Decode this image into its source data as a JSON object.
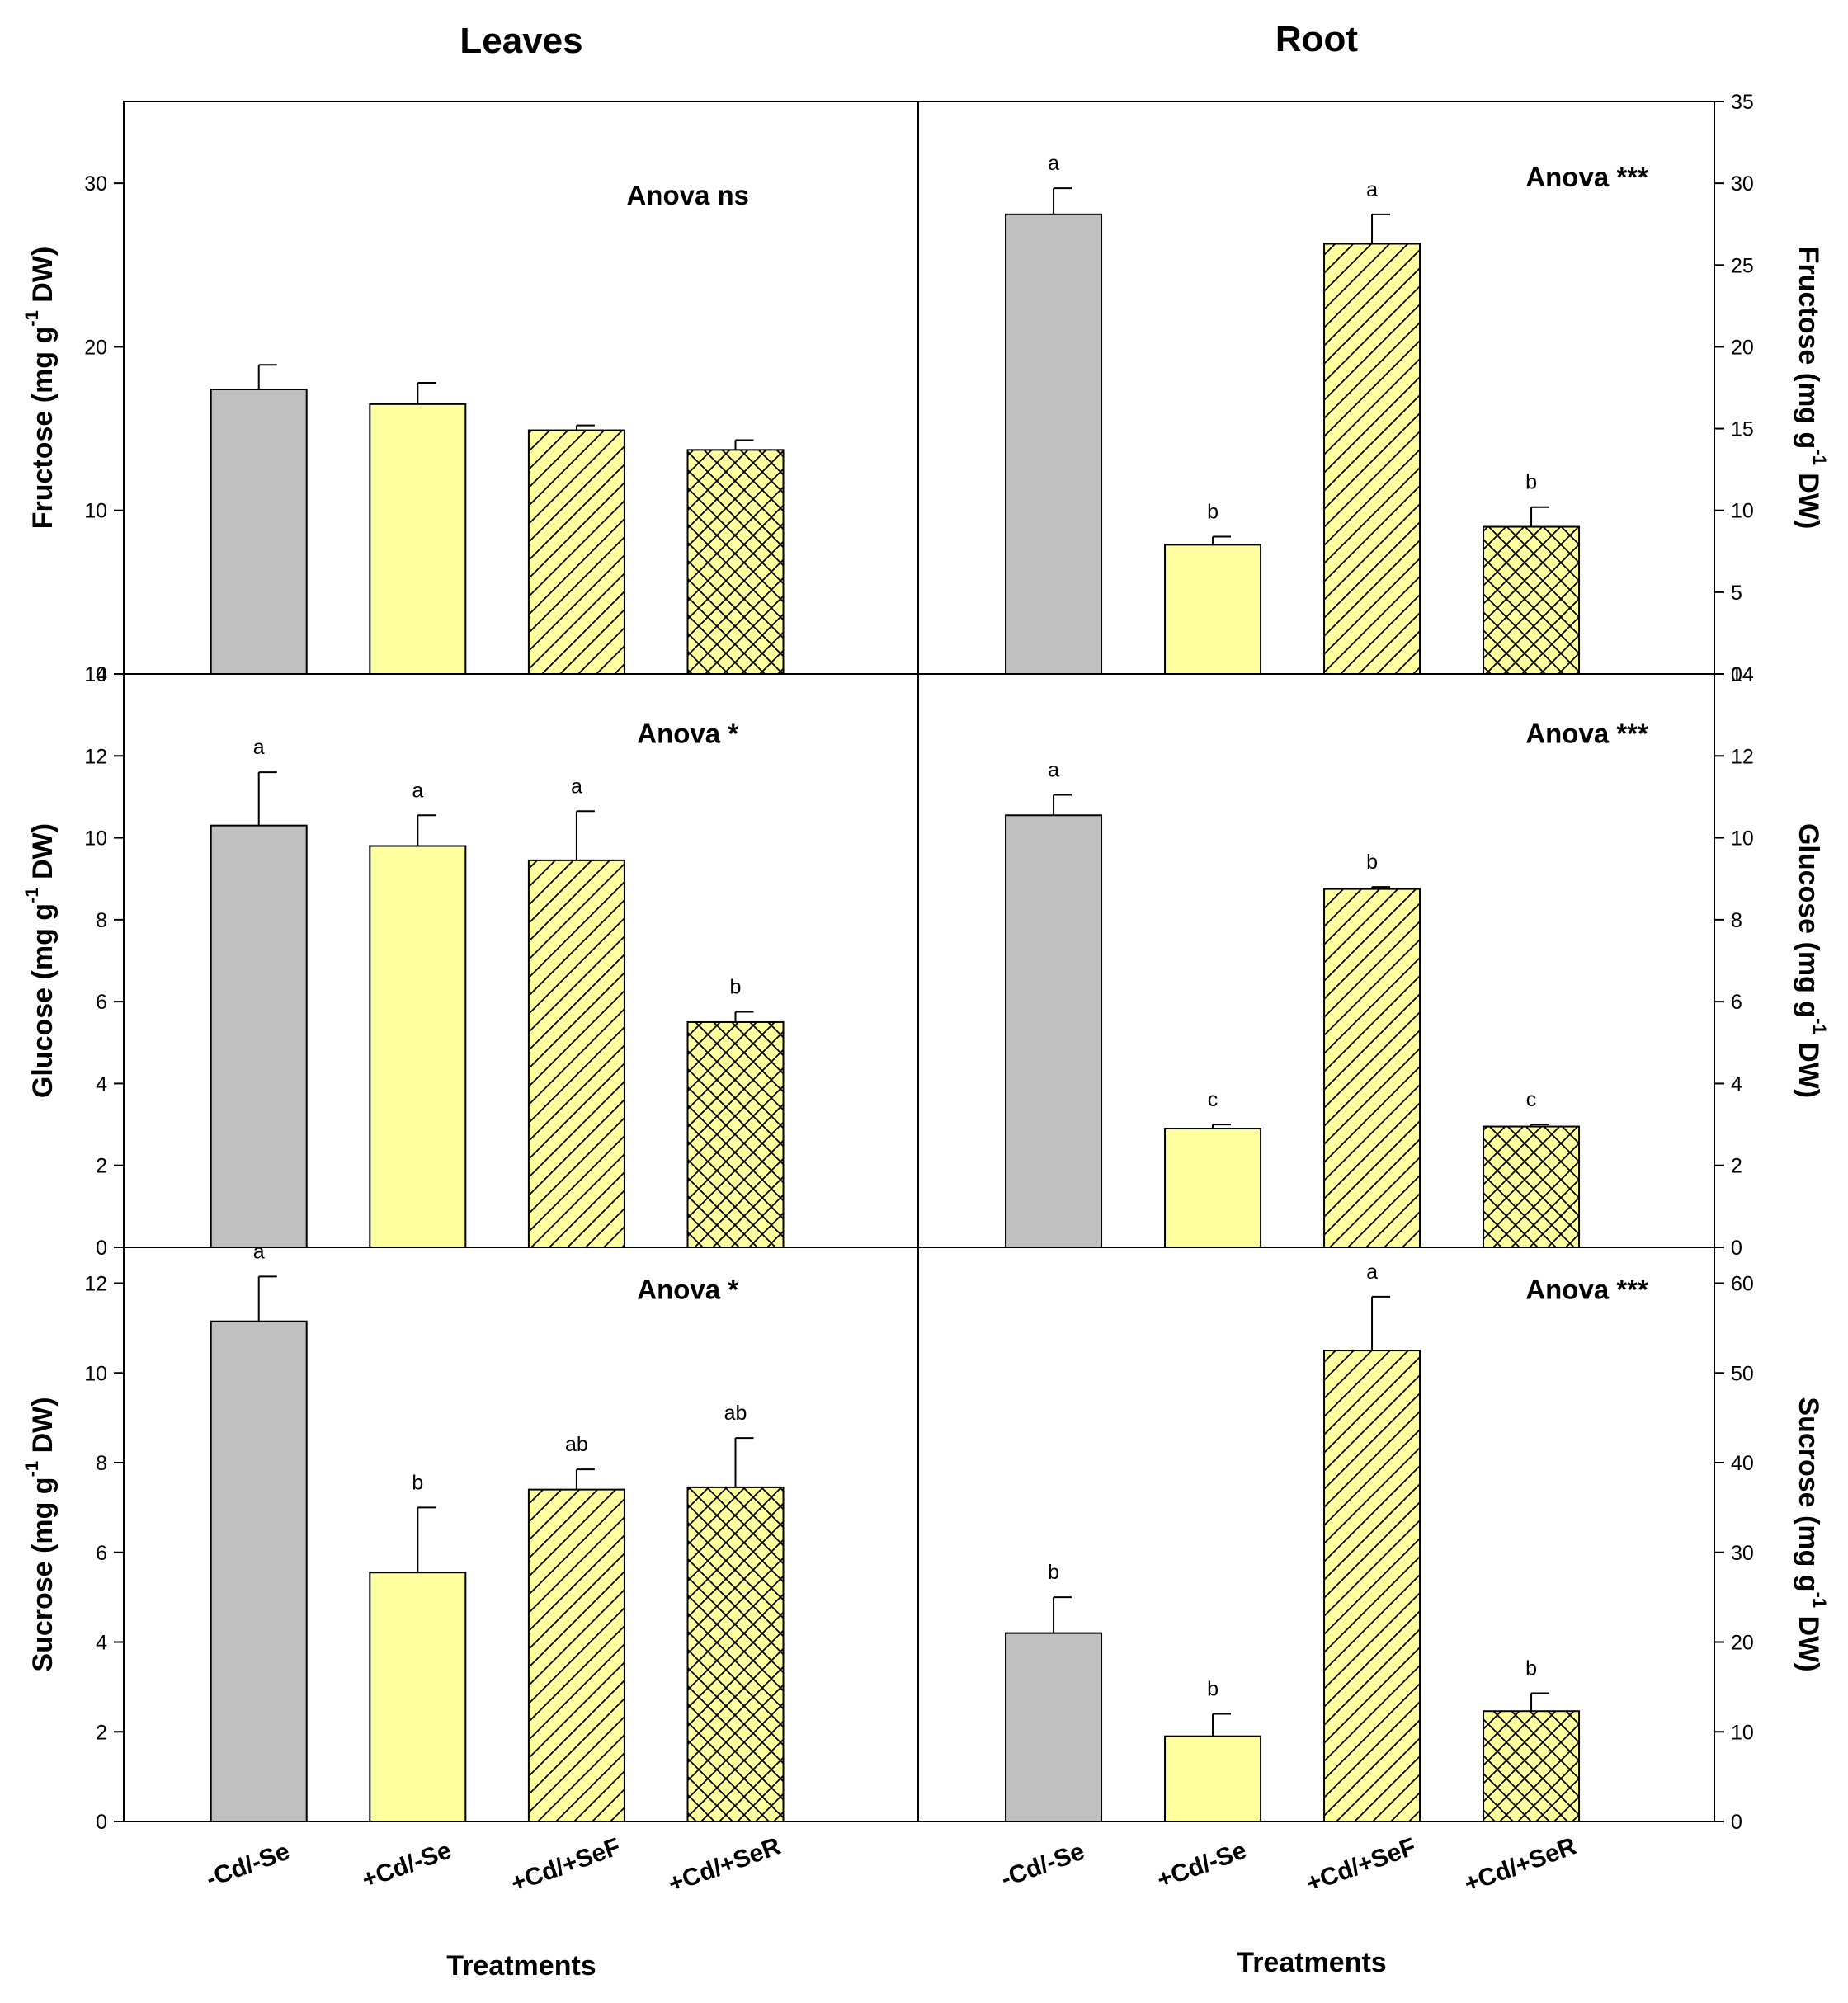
{
  "column_titles": {
    "left": "Leaves",
    "right": "Root"
  },
  "xlabels": {
    "left": "Treatments",
    "right": "Treatments"
  },
  "colors": {
    "control": "#c0c0c0",
    "cd": "#ffffa0",
    "stroke": "#000000"
  },
  "chart_data": [
    {
      "type": "bar",
      "organ": "Leaves",
      "ylabel": "Fructose (mg g-1 DW)",
      "ylabel_main": "Fructose (mg g",
      "ylabel_sup": "-1",
      "ylabel_tail": " DW)",
      "ylim": [
        0,
        35
      ],
      "yticks": [
        0,
        10,
        20,
        30
      ],
      "categories": [
        "-Cd/-Se",
        "+Cd/-Se",
        "+Cd/+SeF",
        "+Cd/+SeR"
      ],
      "patterns": [
        "solid",
        "solid",
        "diagonal",
        "crosshatch"
      ],
      "values": [
        17.4,
        16.5,
        14.9,
        13.7
      ],
      "errors": [
        1.5,
        1.3,
        0.3,
        0.6
      ],
      "letters": [
        "",
        "",
        "",
        ""
      ],
      "annotation": "Anova ns"
    },
    {
      "type": "bar",
      "organ": "Root",
      "ylabel": "Fructose (mg g-1 DW)",
      "ylabel_main": "Fructose (mg g",
      "ylabel_sup": "-1",
      "ylabel_tail": " DW)",
      "ylim": [
        0,
        35
      ],
      "yticks": [
        0,
        5,
        10,
        15,
        20,
        25,
        30,
        35
      ],
      "categories": [
        "-Cd/-Se",
        "+Cd/-Se",
        "+Cd/+SeF",
        "+Cd/+SeR"
      ],
      "patterns": [
        "solid",
        "solid",
        "diagonal",
        "crosshatch"
      ],
      "values": [
        28.1,
        7.9,
        26.3,
        9.0
      ],
      "errors": [
        1.6,
        0.5,
        1.8,
        1.2
      ],
      "letters": [
        "a",
        "b",
        "a",
        "b"
      ],
      "annotation": "Anova ***"
    },
    {
      "type": "bar",
      "organ": "Leaves",
      "ylabel": "Glucose (mg g-1 DW)",
      "ylabel_main": "Glucose (mg g",
      "ylabel_sup": "-1",
      "ylabel_tail": " DW)",
      "ylim": [
        0,
        14
      ],
      "yticks": [
        0,
        2,
        4,
        6,
        8,
        10,
        12,
        14
      ],
      "categories": [
        "-Cd/-Se",
        "+Cd/-Se",
        "+Cd/+SeF",
        "+Cd/+SeR"
      ],
      "patterns": [
        "solid",
        "solid",
        "diagonal",
        "crosshatch"
      ],
      "values": [
        10.3,
        9.8,
        9.45,
        5.5
      ],
      "errors": [
        1.3,
        0.75,
        1.2,
        0.25
      ],
      "letters": [
        "a",
        "a",
        "a",
        "b"
      ],
      "annotation": "Anova *"
    },
    {
      "type": "bar",
      "organ": "Root",
      "ylabel": "Glucose (mg g-1 DW)",
      "ylabel_main": "Glucose (mg g",
      "ylabel_sup": "-1",
      "ylabel_tail": " DW)",
      "ylim": [
        0,
        14
      ],
      "yticks": [
        0,
        2,
        4,
        6,
        8,
        10,
        12,
        14
      ],
      "categories": [
        "-Cd/-Se",
        "+Cd/-Se",
        "+Cd/+SeF",
        "+Cd/+SeR"
      ],
      "patterns": [
        "solid",
        "solid",
        "diagonal",
        "crosshatch"
      ],
      "values": [
        10.55,
        2.9,
        8.75,
        2.95
      ],
      "errors": [
        0.5,
        0.1,
        0.05,
        0.05
      ],
      "letters": [
        "a",
        "c",
        "b",
        "c"
      ],
      "annotation": "Anova ***"
    },
    {
      "type": "bar",
      "organ": "Leaves",
      "ylabel": "Sucrose (mg g-1 DW)",
      "ylabel_main": "Sucrose (mg g",
      "ylabel_sup": "-1",
      "ylabel_tail": " DW)",
      "ylim": [
        0,
        12.8
      ],
      "yticks": [
        0,
        2,
        4,
        6,
        8,
        10,
        12
      ],
      "categories": [
        "-Cd/-Se",
        "+Cd/-Se",
        "+Cd/+SeF",
        "+Cd/+SeR"
      ],
      "patterns": [
        "solid",
        "solid",
        "diagonal",
        "crosshatch"
      ],
      "values": [
        11.15,
        5.55,
        7.4,
        7.45
      ],
      "errors": [
        1.0,
        1.45,
        0.45,
        1.1
      ],
      "letters": [
        "a",
        "b",
        "ab",
        "ab"
      ],
      "annotation": "Anova *"
    },
    {
      "type": "bar",
      "organ": "Root",
      "ylabel": "Sucrose (mg g-1 DW)",
      "ylabel_main": "Sucrose (mg g",
      "ylabel_sup": "-1",
      "ylabel_tail": " DW)",
      "ylim": [
        0,
        64
      ],
      "yticks": [
        0,
        10,
        20,
        30,
        40,
        50,
        60
      ],
      "categories": [
        "-Cd/-Se",
        "+Cd/-Se",
        "+Cd/+SeF",
        "+Cd/+SeR"
      ],
      "patterns": [
        "solid",
        "solid",
        "diagonal",
        "crosshatch"
      ],
      "values": [
        21,
        9.5,
        52.5,
        12.3
      ],
      "errors": [
        4,
        2.5,
        6,
        2
      ],
      "letters": [
        "b",
        "b",
        "a",
        "b"
      ],
      "annotation": "Anova ***"
    }
  ]
}
